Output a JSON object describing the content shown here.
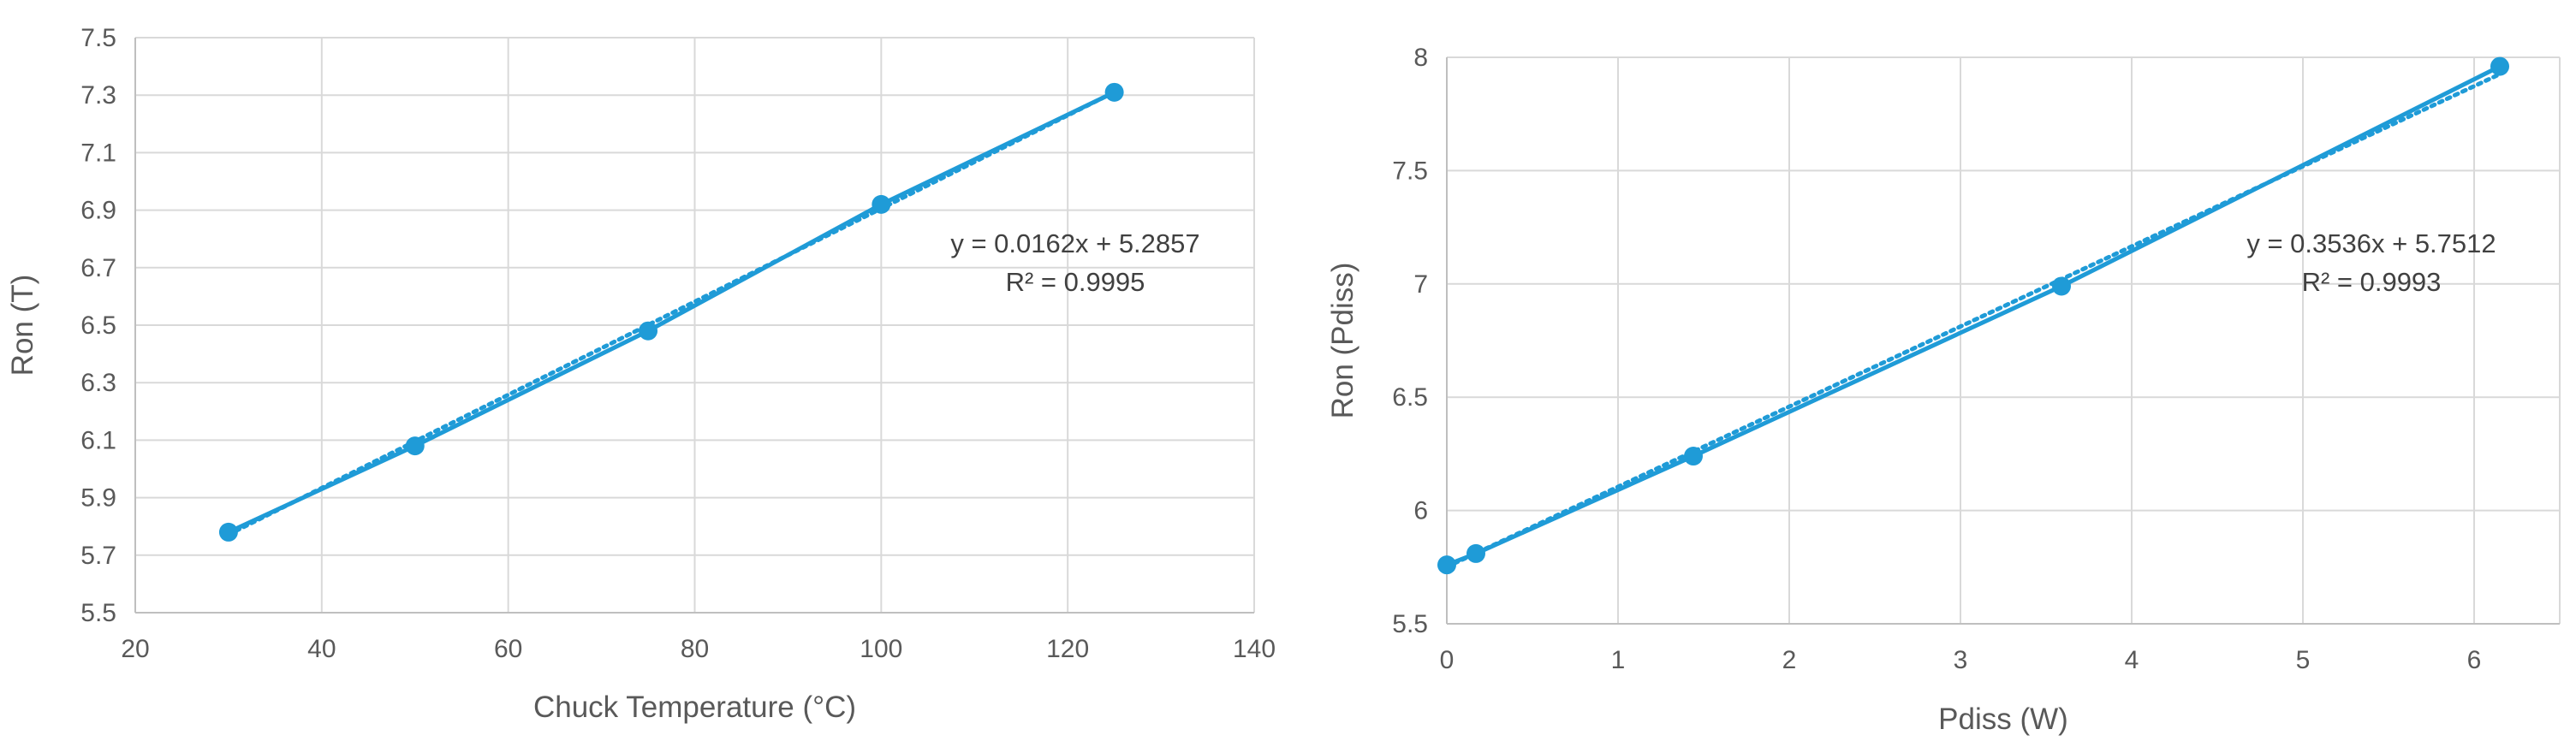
{
  "colors": {
    "series": "#1f9bd7",
    "grid": "#d9d9d9",
    "axis": "#bfbfbf",
    "text": "#595959"
  },
  "chart_data": [
    {
      "type": "scatter",
      "xlabel": "Chuck Temperature (°C)",
      "ylabel": "Ron (T)",
      "xlim": [
        20,
        140
      ],
      "ylim": [
        5.5,
        7.5
      ],
      "xticks": [
        20,
        40,
        60,
        80,
        100,
        120,
        140
      ],
      "yticks": [
        5.5,
        5.7,
        5.9,
        6.1,
        6.3,
        6.5,
        6.7,
        6.9,
        7.1,
        7.3,
        7.5
      ],
      "grid": true,
      "series": [
        {
          "x": [
            30,
            50,
            75,
            100,
            125
          ],
          "y": [
            5.78,
            6.08,
            6.48,
            6.92,
            7.31
          ],
          "connected": true
        }
      ],
      "trendline": {
        "type": "linear",
        "slope": 0.0162,
        "intercept": 5.2857,
        "style": "dotted"
      },
      "annotation": {
        "equation": "y = 0.0162x + 5.2857",
        "r2": "R² = 0.9995"
      }
    },
    {
      "type": "scatter",
      "xlabel": "Pdiss (W)",
      "ylabel": "Ron (Pdiss)",
      "xlim": [
        0,
        6.5
      ],
      "ylim": [
        5.5,
        8
      ],
      "xticks": [
        0,
        1,
        2,
        3,
        4,
        5,
        6
      ],
      "yticks": [
        5.5,
        6,
        6.5,
        7,
        7.5,
        8
      ],
      "grid": true,
      "series": [
        {
          "x": [
            0,
            0.17,
            1.44,
            3.59,
            6.15
          ],
          "y": [
            5.76,
            5.81,
            6.24,
            6.99,
            7.96
          ],
          "connected": true
        }
      ],
      "trendline": {
        "type": "linear",
        "slope": 0.3536,
        "intercept": 5.7512,
        "style": "dotted"
      },
      "annotation": {
        "equation": "y = 0.3536x + 5.7512",
        "r2": "R² = 0.9993"
      }
    }
  ]
}
